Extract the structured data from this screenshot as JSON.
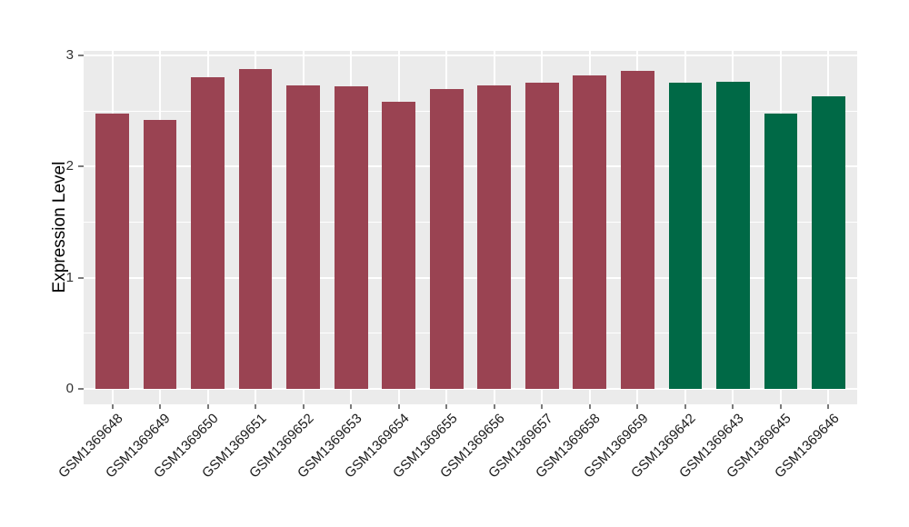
{
  "figure": {
    "background_color": "#FFFFFF",
    "panel_background_color": "#EBEBEB",
    "grid_color": "#FFFFFF",
    "axis_text_color": "#303030",
    "tick_mark_color": "#7A7A7A"
  },
  "chart_data": {
    "type": "bar",
    "title": "",
    "xlabel": "",
    "ylabel": "Expression Level",
    "categories": [
      "GSM1369648",
      "GSM1369649",
      "GSM1369650",
      "GSM1369651",
      "GSM1369652",
      "GSM1369653",
      "GSM1369654",
      "GSM1369655",
      "GSM1369656",
      "GSM1369657",
      "GSM1369658",
      "GSM1369659",
      "GSM1369642",
      "GSM1369643",
      "GSM1369645",
      "GSM1369646"
    ],
    "values": [
      2.48,
      2.42,
      2.8,
      2.88,
      2.73,
      2.72,
      2.58,
      2.7,
      2.73,
      2.75,
      2.82,
      2.86,
      2.75,
      2.76,
      2.48,
      2.63
    ],
    "bar_colors": [
      "#9A4352",
      "#9A4352",
      "#9A4352",
      "#9A4352",
      "#9A4352",
      "#9A4352",
      "#9A4352",
      "#9A4352",
      "#9A4352",
      "#9A4352",
      "#9A4352",
      "#9A4352",
      "#006946",
      "#006946",
      "#006946",
      "#006946"
    ],
    "group_colors": {
      "group1": "#9A4352",
      "group2": "#006946"
    },
    "ylim": [
      -0.14,
      3.04
    ],
    "yticks": [
      0,
      1,
      2,
      3
    ],
    "yticks_minor": [
      0.5,
      1.5,
      2.5
    ],
    "bar_width_frac": 0.7,
    "grid": "major and minor white gridlines on gray panel",
    "legend": false,
    "x_label_rotation_deg": 45
  }
}
